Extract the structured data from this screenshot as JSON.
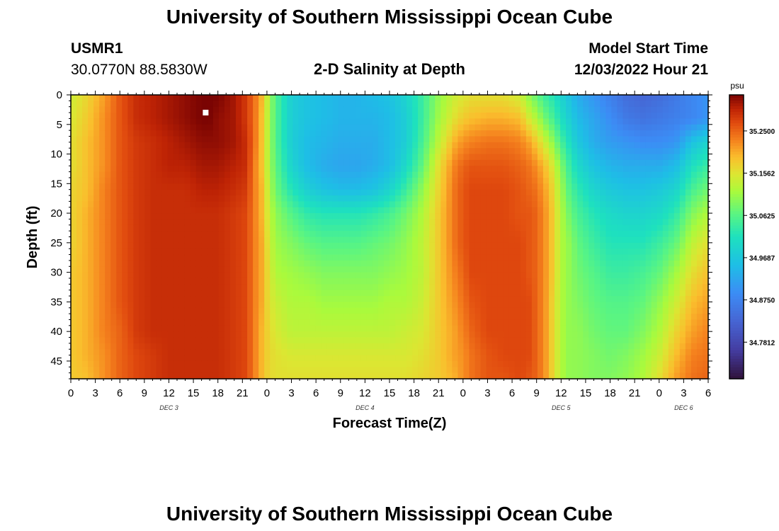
{
  "header": {
    "title": "University of Southern Mississippi Ocean Cube",
    "station_id": "USMR1",
    "coordinates": "30.0770N  88.5830W",
    "plot_title": "2-D Salinity at Depth",
    "model_label": "Model Start Time",
    "model_time": "12/03/2022 Hour 21"
  },
  "footer": {
    "title": "University of Southern Mississippi Ocean Cube"
  },
  "colors": {
    "background": "#ffffff",
    "axis": "#000000",
    "marker": "#ffffff"
  },
  "chart_data": {
    "type": "heatmap",
    "title": "2-D Salinity at Depth",
    "xlabel": "Forecast Time(Z)",
    "ylabel": "Depth (ft)",
    "x_unit": "hours since DEC 3 00Z",
    "xlim": [
      0,
      78
    ],
    "x_ticks": [
      0,
      3,
      6,
      9,
      12,
      15,
      18,
      21,
      24,
      27,
      30,
      33,
      36,
      39,
      42,
      45,
      48,
      51,
      54,
      57,
      60,
      63,
      66,
      69,
      72,
      75,
      78
    ],
    "x_tick_labels": [
      "0",
      "3",
      "6",
      "9",
      "12",
      "15",
      "18",
      "21",
      "0",
      "3",
      "6",
      "9",
      "12",
      "15",
      "18",
      "21",
      "0",
      "3",
      "6",
      "9",
      "12",
      "15",
      "18",
      "21",
      "0",
      "3",
      "6"
    ],
    "date_labels": [
      {
        "hour": 12,
        "label": "DEC 3"
      },
      {
        "hour": 36,
        "label": "DEC 4"
      },
      {
        "hour": 60,
        "label": "DEC 5"
      },
      {
        "hour": 75,
        "label": "DEC 6"
      }
    ],
    "ylim": [
      0,
      48
    ],
    "y_ticks": [
      0,
      5,
      10,
      15,
      20,
      25,
      30,
      35,
      40,
      45
    ],
    "y_tick_labels": [
      "0",
      "5",
      "10",
      "15",
      "20",
      "25",
      "30",
      "35",
      "40",
      "45"
    ],
    "colorbar": {
      "unit": "psu",
      "range": [
        34.7,
        35.33
      ],
      "tick_values": [
        35.25,
        35.15625,
        35.0625,
        34.96875,
        34.875,
        34.78125
      ],
      "tick_labels": [
        "35.2500",
        "35.1562",
        "35.0625",
        "34.9687",
        "34.8750",
        "34.7812"
      ]
    },
    "marker": {
      "hour": 16.5,
      "depth": 3
    },
    "profile_hours": [
      0,
      2,
      4,
      6,
      8,
      10,
      12,
      14,
      16,
      17,
      18,
      20,
      21.5,
      22.5,
      23.5,
      24.2,
      25,
      27,
      29,
      31,
      33,
      35,
      37,
      39,
      41,
      43,
      45,
      47,
      48,
      49,
      51,
      53,
      55,
      56,
      57,
      58,
      59,
      60,
      61,
      62,
      64,
      66,
      68,
      70,
      72,
      74,
      76,
      78
    ],
    "profile_depths": [
      0,
      4,
      8,
      12,
      16,
      20,
      25,
      30,
      35,
      40,
      44,
      48
    ],
    "salinity_psu": [
      [
        35.14,
        35.15,
        35.16,
        35.16,
        35.17,
        35.17,
        35.17,
        35.18,
        35.18,
        35.18,
        35.18,
        35.18
      ],
      [
        35.17,
        35.18,
        35.19,
        35.19,
        35.19,
        35.2,
        35.2,
        35.2,
        35.2,
        35.2,
        35.2,
        35.19
      ],
      [
        35.21,
        35.22,
        35.22,
        35.22,
        35.23,
        35.23,
        35.23,
        35.23,
        35.23,
        35.23,
        35.22,
        35.22
      ],
      [
        35.26,
        35.26,
        35.26,
        35.26,
        35.26,
        35.26,
        35.26,
        35.26,
        35.26,
        35.25,
        35.25,
        35.25
      ],
      [
        35.29,
        35.29,
        35.28,
        35.28,
        35.28,
        35.28,
        35.28,
        35.28,
        35.28,
        35.28,
        35.27,
        35.27
      ],
      [
        35.3,
        35.3,
        35.29,
        35.29,
        35.29,
        35.29,
        35.29,
        35.29,
        35.29,
        35.29,
        35.28,
        35.28
      ],
      [
        35.31,
        35.31,
        35.3,
        35.3,
        35.29,
        35.29,
        35.29,
        35.29,
        35.29,
        35.29,
        35.29,
        35.29
      ],
      [
        35.32,
        35.32,
        35.31,
        35.3,
        35.29,
        35.29,
        35.29,
        35.29,
        35.29,
        35.29,
        35.29,
        35.29
      ],
      [
        35.33,
        35.33,
        35.32,
        35.31,
        35.3,
        35.29,
        35.29,
        35.29,
        35.29,
        35.29,
        35.29,
        35.29
      ],
      [
        35.33,
        35.33,
        35.32,
        35.31,
        35.3,
        35.29,
        35.29,
        35.29,
        35.29,
        35.29,
        35.29,
        35.29
      ],
      [
        35.33,
        35.32,
        35.32,
        35.31,
        35.3,
        35.29,
        35.29,
        35.29,
        35.29,
        35.29,
        35.29,
        35.29
      ],
      [
        35.31,
        35.31,
        35.31,
        35.3,
        35.29,
        35.28,
        35.28,
        35.28,
        35.28,
        35.28,
        35.28,
        35.28
      ],
      [
        35.28,
        35.28,
        35.29,
        35.29,
        35.28,
        35.27,
        35.27,
        35.27,
        35.27,
        35.27,
        35.27,
        35.27
      ],
      [
        35.24,
        35.24,
        35.24,
        35.23,
        35.23,
        35.23,
        35.23,
        35.23,
        35.23,
        35.23,
        35.23,
        35.23
      ],
      [
        35.19,
        35.18,
        35.18,
        35.18,
        35.19,
        35.19,
        35.2,
        35.2,
        35.2,
        35.19,
        35.19,
        35.19
      ],
      [
        35.12,
        35.12,
        35.12,
        35.12,
        35.13,
        35.14,
        35.15,
        35.16,
        35.16,
        35.17,
        35.17,
        35.17
      ],
      [
        35.06,
        35.06,
        35.06,
        35.07,
        35.08,
        35.1,
        35.11,
        35.12,
        35.14,
        35.15,
        35.16,
        35.16
      ],
      [
        34.98,
        34.98,
        34.98,
        34.99,
        35.02,
        35.06,
        35.09,
        35.11,
        35.12,
        35.13,
        35.15,
        35.16
      ],
      [
        34.96,
        34.96,
        34.95,
        34.95,
        34.98,
        35.03,
        35.07,
        35.1,
        35.12,
        35.13,
        35.15,
        35.16
      ],
      [
        34.95,
        34.95,
        34.94,
        34.93,
        34.96,
        35.02,
        35.06,
        35.09,
        35.11,
        35.13,
        35.15,
        35.16
      ],
      [
        34.94,
        34.94,
        34.93,
        34.92,
        34.95,
        35.02,
        35.06,
        35.09,
        35.11,
        35.13,
        35.15,
        35.16
      ],
      [
        34.94,
        34.94,
        34.93,
        34.92,
        34.95,
        35.02,
        35.06,
        35.09,
        35.11,
        35.13,
        35.15,
        35.16
      ],
      [
        34.95,
        34.94,
        34.93,
        34.93,
        34.96,
        35.03,
        35.07,
        35.09,
        35.11,
        35.13,
        35.15,
        35.16
      ],
      [
        34.96,
        34.95,
        34.95,
        34.95,
        34.99,
        35.05,
        35.08,
        35.1,
        35.12,
        35.13,
        35.15,
        35.16
      ],
      [
        34.99,
        34.98,
        34.98,
        35.0,
        35.04,
        35.08,
        35.1,
        35.11,
        35.12,
        35.14,
        35.15,
        35.16
      ],
      [
        35.04,
        35.04,
        35.05,
        35.07,
        35.1,
        35.12,
        35.13,
        35.13,
        35.14,
        35.15,
        35.16,
        35.17
      ],
      [
        35.1,
        35.11,
        35.13,
        35.16,
        35.17,
        35.18,
        35.18,
        35.18,
        35.18,
        35.18,
        35.18,
        35.18
      ],
      [
        35.14,
        35.16,
        35.2,
        35.23,
        35.24,
        35.24,
        35.24,
        35.23,
        35.22,
        35.21,
        35.21,
        35.2
      ],
      [
        35.15,
        35.18,
        35.22,
        35.25,
        35.26,
        35.26,
        35.26,
        35.25,
        35.24,
        35.23,
        35.22,
        35.22
      ],
      [
        35.16,
        35.19,
        35.23,
        35.26,
        35.27,
        35.27,
        35.27,
        35.27,
        35.26,
        35.25,
        35.24,
        35.24
      ],
      [
        35.16,
        35.2,
        35.24,
        35.26,
        35.27,
        35.27,
        35.27,
        35.27,
        35.27,
        35.27,
        35.26,
        35.26
      ],
      [
        35.16,
        35.2,
        35.24,
        35.26,
        35.27,
        35.27,
        35.27,
        35.27,
        35.27,
        35.27,
        35.27,
        35.26
      ],
      [
        35.14,
        35.19,
        35.23,
        35.25,
        35.26,
        35.26,
        35.27,
        35.27,
        35.27,
        35.27,
        35.27,
        35.27
      ],
      [
        35.1,
        35.15,
        35.21,
        35.24,
        35.25,
        35.26,
        35.26,
        35.26,
        35.27,
        35.27,
        35.27,
        35.26
      ],
      [
        35.07,
        35.12,
        35.18,
        35.22,
        35.24,
        35.25,
        35.25,
        35.25,
        35.25,
        35.25,
        35.25,
        35.25
      ],
      [
        35.04,
        35.08,
        35.14,
        35.19,
        35.21,
        35.22,
        35.22,
        35.22,
        35.22,
        35.22,
        35.22,
        35.22
      ],
      [
        35.02,
        35.05,
        35.1,
        35.15,
        35.17,
        35.18,
        35.18,
        35.18,
        35.17,
        35.17,
        35.17,
        35.17
      ],
      [
        34.99,
        35.01,
        35.05,
        35.09,
        35.11,
        35.12,
        35.12,
        35.12,
        35.12,
        35.12,
        35.12,
        35.12
      ],
      [
        34.96,
        34.98,
        35.01,
        35.04,
        35.06,
        35.08,
        35.1,
        35.1,
        35.1,
        35.1,
        35.1,
        35.1
      ],
      [
        34.93,
        34.95,
        34.97,
        35.0,
        35.03,
        35.05,
        35.07,
        35.08,
        35.09,
        35.1,
        35.1,
        35.1
      ],
      [
        34.9,
        34.92,
        34.93,
        34.96,
        34.99,
        35.02,
        35.04,
        35.06,
        35.07,
        35.08,
        35.09,
        35.09
      ],
      [
        34.87,
        34.89,
        34.91,
        34.94,
        34.97,
        35.0,
        35.02,
        35.04,
        35.06,
        35.07,
        35.08,
        35.09
      ],
      [
        34.84,
        34.86,
        34.9,
        34.93,
        34.96,
        34.99,
        35.02,
        35.04,
        35.06,
        35.07,
        35.09,
        35.1
      ],
      [
        34.83,
        34.85,
        34.89,
        34.93,
        34.96,
        34.99,
        35.02,
        35.05,
        35.07,
        35.09,
        35.11,
        35.12
      ],
      [
        34.84,
        34.86,
        34.89,
        34.93,
        34.97,
        35.0,
        35.04,
        35.07,
        35.1,
        35.12,
        35.14,
        35.16
      ],
      [
        34.86,
        34.87,
        34.9,
        34.95,
        34.99,
        35.03,
        35.07,
        35.11,
        35.14,
        35.17,
        35.19,
        35.21
      ],
      [
        34.88,
        34.88,
        34.96,
        35.01,
        35.05,
        35.09,
        35.13,
        35.16,
        35.19,
        35.21,
        35.23,
        35.24
      ],
      [
        34.9,
        34.9,
        34.99,
        35.04,
        35.08,
        35.12,
        35.16,
        35.19,
        35.21,
        35.23,
        35.24,
        35.25
      ]
    ]
  }
}
